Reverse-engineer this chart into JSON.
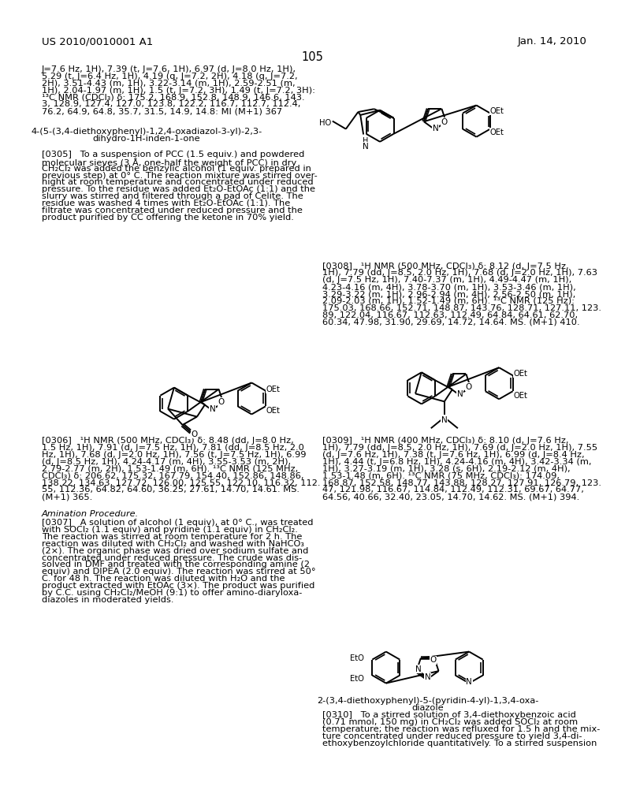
{
  "page_number": "105",
  "patent_left": "US 2010/0010001 A1",
  "patent_right": "Jan. 14, 2010",
  "background_color": "#ffffff",
  "top_text_lines": [
    "J=7.6 Hz, 1H), 7.39 (t, J=7.6, 1H), 6.97 (d, J=8.0 Hz, 1H),",
    "5.29 (t, J=6.4 Hz, 1H), 4.19 (q, J=7.2, 2H), 4.18 (q, J=7.2,",
    "2H), 3.51-4.43 (m, 1H), 3.22-3.14 (m, 1H), 2.59-2.51 (m,",
    "1H), 2.04-1.97 (m, 1H), 1.5 (t, J=7.2, 3H), 1.49 (t, J=7.2, 3H):",
    "¹³C NMR (CDCl₃) δ: 175.2, 168.9, 152.8, 148.9, 146.6, 143.",
    "3, 128.9, 127.4, 127.0, 123.8, 122.2, 116.7, 112.7, 112.4,",
    "76.2, 64.9, 64.8, 35.7, 31.5, 14.9, 14.8: MI (M+1) 367"
  ],
  "compound_label_1_lines": [
    "4-(5-(3,4-diethoxyphenyl)-1,2,4-oxadiazol-3-yl)-2,3-",
    "dihydro-1H-inden-1-one"
  ],
  "para_0305_lines": [
    "[0305]   To a suspension of PCC (1.5 equiv.) and powdered",
    "molecular sieves (3 Å, one-half the weight of PCC) in dry",
    "CH₂Cl₂ was added the benzylic alcohol (1 equiv. prepared in",
    "previous step) at 0° C. The reaction mixture was stirred over-",
    "night at room temperature and concentrated under reduced",
    "pressure. To the residue was added Et₂O-EtOAc (1:1) and the",
    "slurry was stirred and filtered through a pad of Celite. The",
    "residue was washed 4 times with Et₂O-EtOAc (1:1). The",
    "filtrate was concentrated under reduced pressure and the",
    "product purified by CC offering the ketone in 70% yield."
  ],
  "para_0308_lines": [
    "[0308]   ¹H NMR (500 MHz, CDCl₃) δ: 8.12 (d, J=7.5 Hz,",
    "1H), 7.79 (dd, J=8.5, 2.0 Hz, 1H), 7.68 (d, J=2.0 Hz, 1H), 7.63",
    "(d, J=7.5 Hz, 1H), 7.40-7.37 (m, 1H), 4.49-4.47 (m, 1H),",
    "4.23-4.16 (m, 4H), 3.78-3.70 (m, 1H), 3.53-3.46 (m, 1H),",
    "3.29-3.22 (m, 1H), 2.96-2.94 (m, 4H), 2.56-2.50 (m, 1H),",
    "2.09-2.03 (m, 1H), 1.52-1.49 (m, 6H). ¹³C NMR (125 Hz):",
    "175.03, 168.66, 152.71, 148.87, 143.76, 128.71, 127.11, 123.",
    "89, 122.04, 116.67, 112.63, 112.49, 64.84, 64.61, 62.70,",
    "60.34, 47.98, 31.90, 29.69, 14.72, 14.64. MS. (M+1) 410."
  ],
  "para_0306_lines": [
    "[0306]   ¹H NMR (500 MHz, CDCl₃) δ: 8.48 (dd, J=8.0 Hz,",
    "1.5 Hz, 1H), 7.91 (d, J=7.5 Hz, 1H), 7.81 (dd, J=8.5 Hz, 2.0",
    "Hz, 1H), 7.68 (d, J=2.0 Hz, 1H), 7.56 (t, J=7.5 Hz, 1H), 6.99",
    "(d, J=8.5 Hz, 1H), 4.24-4.17 (m, 4H), 3.55-3.53 (m, 2H),",
    "2.79-2.77 (m, 2H), 1.53-1.49 (m, 6H). ¹³C NMR (125 MHz,",
    "CDCl₃) δ: 206.62, 175.32, 167.79, 154.40, 152.86, 148.86,",
    "138.22, 134.63, 127.72, 126.00, 125.55, 122.10, 116.32, 112.",
    "55, 112.36, 64.82, 64.60, 36.25, 27.61, 14.70, 14.61. MS.",
    "(M+1) 365."
  ],
  "amination_header": "Amination Procedure.",
  "para_0307_lines": [
    "[0307]   A solution of alcohol (1 equiv), at 0° C., was treated",
    "with SOCl₂ (1.1 equiv) and pyridine (1.1 equiv) in CH₂Cl₂.",
    "The reaction was stirred at room temperature for 2 h. The",
    "reaction was diluted with CH₂Cl₂ and washed with NaHCO₃",
    "(2×). The organic phase was dried over sodium sulfate and",
    "concentrated under reduced pressure. The crude was dis-",
    "solved in DMF and treated with the corresponding amine (2",
    "equiv) and DIPEA (2.0 equiv). The reaction was stirred at 50°",
    "C. for 48 h. The reaction was diluted with H₂O and the",
    "product extracted with EtOAc (3×). The product was purified",
    "by C.C. using CH₂Cl₂/MeOH (9:1) to offer amino-diaryloxa-",
    "diazoles in moderated yields."
  ],
  "para_0309_lines": [
    "[0309]   ¹H NMR (400 MHz, CDCl₃) δ: 8.10 (d, J=7.6 Hz,",
    "1H), 7.79 (dd, J=8.5, 2.0 Hz, 1H), 7.69 (d, J=2.0 Hz, 1H), 7.55",
    "(d, J=7.6 Hz, 1H), 7.38 (t, J=7.6 Hz, 1H), 6.99 (d, J=8.4 Hz,",
    "1H), 4.44 (t, J=6.8 Hz, 1H), 4.24-4.16 (m, 4H), 3.42-3.34 (m,",
    "1H), 3.27-3.19 (m, 1H), 3.28 (s, 6H), 2.19-2.12 (m, 4H),",
    "1.53-1.48 (m, 6H). ¹³C NMR (75 MHz, CDCl₃): 174.09,",
    "168.87, 152.58, 148.77, 143.88, 128.27, 127.91, 126.79, 123.",
    "47, 121.98, 116.67, 114.84, 112.49, 112.31, 69.67, 64.77,",
    "64.56, 40.66, 32.40, 23.05, 14.70, 14.62. MS. (M+1) 394."
  ],
  "compound_label_2_lines": [
    "2-(3,4-diethoxyphenyl)-5-(pyridin-4-yl)-1,3,4-oxa-",
    "diazole"
  ],
  "para_0310_lines": [
    "[0310]   To a stirred solution of 3,4-diethoxybenzoic acid",
    "(0.71 mmol, 150 mg) in CH₂Cl₂ was added SOCl₂ at room",
    "temperature; the reaction was refluxed for 1.5 h and the mix-",
    "ture concentrated under reduced pressure to yield 3,4-di-",
    "ethoxybenzoylchloride quantitatively. To a stirred suspension"
  ]
}
